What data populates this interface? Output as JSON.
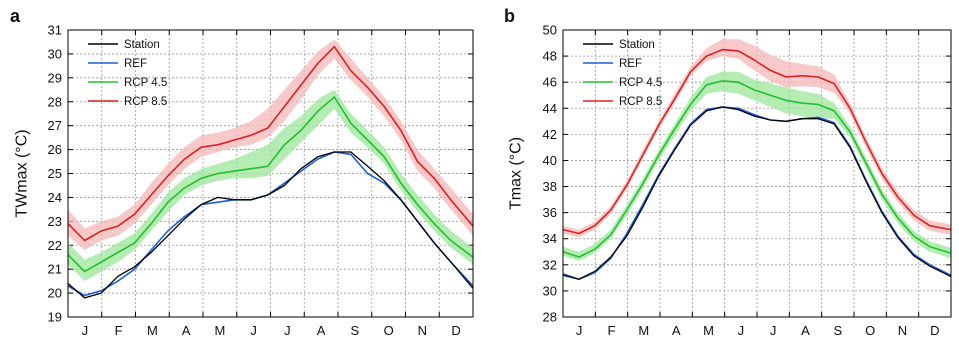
{
  "colors": {
    "station": "#000000",
    "ref": "#1f5fd6",
    "rcp45": "#22c02a",
    "rcp85": "#e02020",
    "rcp45_band": "#9be59b",
    "rcp85_band": "#f6b7b7",
    "grid": "#9a9a9a"
  },
  "chart_data": [
    {
      "type": "line",
      "panel_label": "a",
      "ylabel": "TWmax (°C)",
      "xlabel": "",
      "categories": [
        "J",
        "F",
        "M",
        "A",
        "M",
        "J",
        "J",
        "A",
        "S",
        "O",
        "N",
        "D"
      ],
      "xlim": [
        0,
        365
      ],
      "ylim": [
        19,
        31
      ],
      "yticks": [
        19,
        20,
        21,
        22,
        23,
        24,
        25,
        26,
        27,
        28,
        29,
        30,
        31
      ],
      "grid": true,
      "legend_position": "top-left",
      "series": [
        {
          "name": "Station",
          "color_key": "station",
          "x": [
            0,
            15,
            30,
            45,
            60,
            75,
            90,
            105,
            120,
            135,
            150,
            165,
            180,
            195,
            210,
            225,
            240,
            255,
            270,
            285,
            300,
            315,
            330,
            345,
            365
          ],
          "y": [
            20.4,
            19.8,
            20.0,
            20.7,
            21.1,
            21.7,
            22.4,
            23.1,
            23.7,
            24.0,
            23.9,
            23.9,
            24.1,
            24.5,
            25.2,
            25.7,
            25.9,
            25.9,
            25.3,
            24.7,
            23.9,
            23.0,
            22.1,
            21.3,
            20.2
          ]
        },
        {
          "name": "REF",
          "color_key": "ref",
          "x": [
            0,
            15,
            30,
            45,
            60,
            75,
            90,
            105,
            120,
            135,
            150,
            165,
            180,
            195,
            210,
            225,
            240,
            255,
            270,
            285,
            300,
            315,
            330,
            345,
            365
          ],
          "y": [
            20.3,
            19.9,
            20.1,
            20.5,
            21.0,
            21.8,
            22.6,
            23.2,
            23.7,
            23.8,
            23.9,
            23.9,
            24.1,
            24.6,
            25.1,
            25.6,
            25.9,
            25.8,
            25.0,
            24.6,
            23.9,
            23.0,
            22.1,
            21.3,
            20.3
          ]
        },
        {
          "name": "RCP 4.5",
          "color_key": "rcp45",
          "x": [
            0,
            15,
            30,
            45,
            60,
            75,
            90,
            105,
            120,
            135,
            150,
            165,
            180,
            195,
            210,
            225,
            240,
            255,
            270,
            285,
            300,
            315,
            330,
            345,
            365
          ],
          "y": [
            21.6,
            20.9,
            21.3,
            21.7,
            22.1,
            22.9,
            23.8,
            24.4,
            24.8,
            25.0,
            25.1,
            25.2,
            25.3,
            26.2,
            26.8,
            27.6,
            28.2,
            27.1,
            26.4,
            25.7,
            24.6,
            23.7,
            22.9,
            22.2,
            21.5
          ],
          "band_low": [
            21.2,
            20.5,
            20.9,
            21.3,
            21.8,
            22.6,
            23.4,
            24.1,
            24.5,
            24.7,
            24.8,
            24.8,
            24.9,
            25.6,
            26.3,
            27.0,
            27.7,
            26.7,
            26.1,
            25.4,
            24.3,
            23.4,
            22.6,
            21.9,
            21.2
          ],
          "band_high": [
            22.1,
            21.4,
            21.7,
            22.1,
            22.5,
            23.3,
            24.2,
            24.8,
            25.2,
            25.4,
            25.6,
            25.9,
            26.2,
            26.9,
            27.4,
            28.1,
            28.5,
            27.5,
            26.8,
            26.1,
            25.0,
            24.1,
            23.3,
            22.6,
            21.9
          ]
        },
        {
          "name": "RCP 8.5",
          "color_key": "rcp85",
          "x": [
            0,
            15,
            30,
            45,
            60,
            75,
            90,
            105,
            120,
            135,
            150,
            165,
            180,
            195,
            210,
            225,
            240,
            255,
            270,
            285,
            300,
            315,
            330,
            345,
            365
          ],
          "y": [
            22.9,
            22.2,
            22.6,
            22.8,
            23.3,
            24.1,
            24.9,
            25.6,
            26.1,
            26.2,
            26.4,
            26.6,
            26.9,
            27.8,
            28.7,
            29.6,
            30.3,
            29.3,
            28.6,
            27.8,
            26.8,
            25.5,
            24.8,
            23.9,
            22.8
          ],
          "band_low": [
            22.4,
            21.8,
            22.2,
            22.4,
            22.9,
            23.7,
            24.5,
            25.2,
            25.7,
            25.9,
            26.1,
            26.2,
            26.5,
            27.2,
            28.1,
            29.1,
            29.8,
            28.9,
            28.2,
            27.4,
            26.4,
            25.1,
            24.4,
            23.5,
            22.4
          ],
          "band_high": [
            23.5,
            22.7,
            23.0,
            23.2,
            23.7,
            24.6,
            25.4,
            26.1,
            26.6,
            26.7,
            26.9,
            27.2,
            27.7,
            28.5,
            29.3,
            30.1,
            30.6,
            29.8,
            29.0,
            28.2,
            27.2,
            26.0,
            25.2,
            24.4,
            23.3
          ]
        }
      ]
    },
    {
      "type": "line",
      "panel_label": "b",
      "ylabel": "Tmax (°C)",
      "xlabel": "",
      "categories": [
        "J",
        "F",
        "M",
        "A",
        "M",
        "J",
        "J",
        "A",
        "S",
        "O",
        "N",
        "D"
      ],
      "xlim": [
        0,
        365
      ],
      "ylim": [
        28,
        50
      ],
      "yticks": [
        28,
        30,
        32,
        34,
        36,
        38,
        40,
        42,
        44,
        46,
        48,
        50
      ],
      "grid": true,
      "legend_position": "top-left",
      "series": [
        {
          "name": "Station",
          "color_key": "station",
          "x": [
            0,
            15,
            30,
            45,
            60,
            75,
            90,
            105,
            120,
            135,
            150,
            165,
            180,
            195,
            210,
            225,
            240,
            255,
            270,
            285,
            300,
            315,
            330,
            345,
            365
          ],
          "y": [
            31.2,
            30.9,
            31.5,
            32.6,
            34.2,
            36.4,
            38.8,
            40.8,
            42.7,
            43.8,
            44.1,
            43.9,
            43.4,
            43.1,
            43.0,
            43.2,
            43.2,
            42.8,
            41.0,
            38.4,
            36.0,
            34.1,
            32.7,
            31.9,
            31.1
          ]
        },
        {
          "name": "REF",
          "color_key": "ref",
          "x": [
            0,
            15,
            30,
            45,
            60,
            75,
            90,
            105,
            120,
            135,
            150,
            165,
            180,
            195,
            210,
            225,
            240,
            255,
            270,
            285,
            300,
            315,
            330,
            345,
            365
          ],
          "y": [
            31.3,
            30.9,
            31.4,
            32.5,
            34.4,
            36.6,
            38.9,
            40.9,
            42.8,
            43.9,
            44.1,
            44.0,
            43.5,
            43.1,
            43.0,
            43.2,
            43.3,
            42.9,
            41.1,
            38.5,
            36.1,
            34.2,
            32.8,
            32.0,
            31.2
          ]
        },
        {
          "name": "RCP 4.5",
          "color_key": "rcp45",
          "x": [
            0,
            15,
            30,
            45,
            60,
            75,
            90,
            105,
            120,
            135,
            150,
            165,
            180,
            195,
            210,
            225,
            240,
            255,
            270,
            285,
            300,
            315,
            330,
            345,
            365
          ],
          "y": [
            33.0,
            32.6,
            33.2,
            34.3,
            36.2,
            38.2,
            40.4,
            42.4,
            44.3,
            45.8,
            46.1,
            46.0,
            45.4,
            45.0,
            44.6,
            44.4,
            44.3,
            43.8,
            42.2,
            39.8,
            37.4,
            35.6,
            34.2,
            33.4,
            32.9
          ],
          "band_low": [
            32.7,
            32.3,
            32.9,
            34.0,
            35.8,
            37.8,
            40.0,
            41.9,
            43.8,
            45.1,
            45.3,
            45.1,
            44.6,
            44.1,
            43.6,
            43.4,
            43.2,
            43.2,
            41.8,
            39.4,
            37.0,
            35.2,
            33.8,
            33.0,
            32.5
          ],
          "band_high": [
            33.4,
            33.0,
            33.6,
            34.7,
            36.6,
            38.6,
            40.8,
            42.8,
            44.8,
            46.4,
            46.8,
            46.8,
            46.2,
            45.9,
            45.6,
            45.3,
            45.1,
            44.4,
            42.6,
            40.2,
            37.8,
            36.0,
            34.6,
            33.8,
            33.3
          ]
        },
        {
          "name": "RCP 8.5",
          "color_key": "rcp85",
          "x": [
            0,
            15,
            30,
            45,
            60,
            75,
            90,
            105,
            120,
            135,
            150,
            165,
            180,
            195,
            210,
            225,
            240,
            255,
            270,
            285,
            300,
            315,
            330,
            345,
            365
          ],
          "y": [
            34.7,
            34.4,
            35.0,
            36.2,
            38.1,
            40.4,
            42.7,
            44.7,
            46.8,
            48.0,
            48.5,
            48.4,
            47.7,
            46.9,
            46.4,
            46.5,
            46.4,
            45.9,
            44.0,
            41.4,
            39.0,
            37.2,
            35.8,
            35.0,
            34.7
          ],
          "band_low": [
            34.4,
            34.1,
            34.7,
            35.9,
            37.8,
            40.1,
            42.4,
            44.4,
            46.5,
            47.6,
            48.0,
            47.8,
            46.9,
            46.1,
            45.6,
            45.7,
            45.6,
            45.2,
            43.6,
            41.0,
            38.6,
            36.8,
            35.4,
            34.6,
            34.3
          ],
          "band_high": [
            35.0,
            34.7,
            35.3,
            36.5,
            38.4,
            40.8,
            43.0,
            45.1,
            47.2,
            48.6,
            49.3,
            49.3,
            48.8,
            48.1,
            47.6,
            47.4,
            47.2,
            46.6,
            44.4,
            41.8,
            39.4,
            37.6,
            36.2,
            35.4,
            35.1
          ]
        }
      ]
    }
  ]
}
